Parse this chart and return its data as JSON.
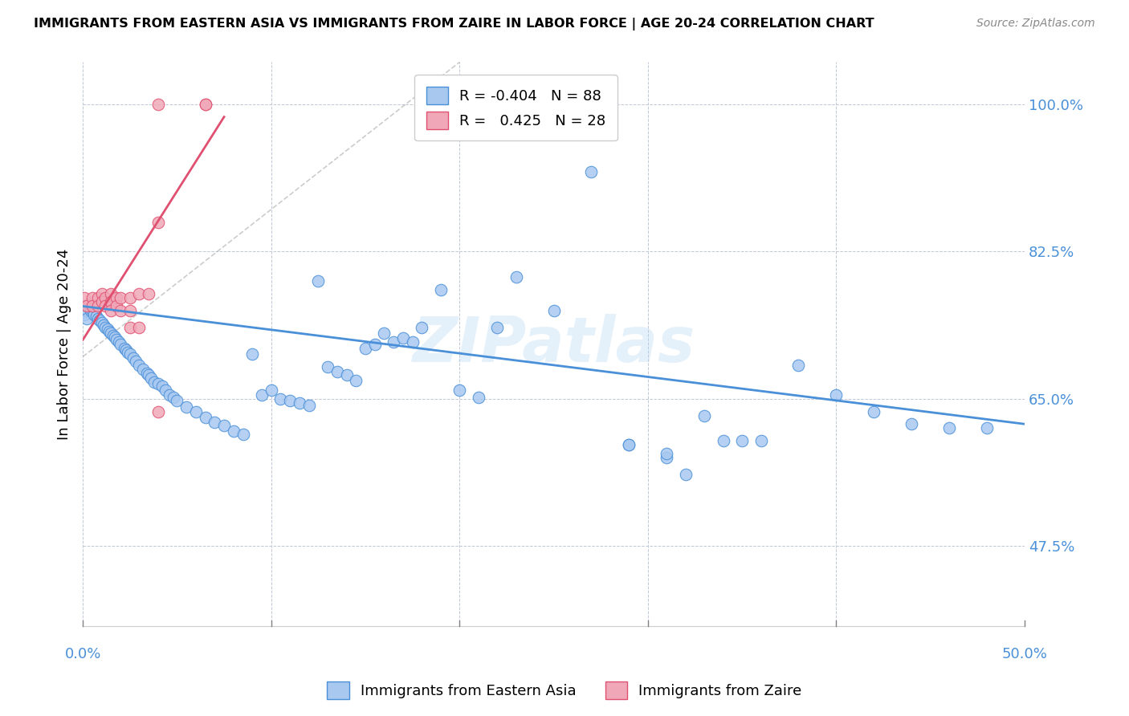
{
  "title": "IMMIGRANTS FROM EASTERN ASIA VS IMMIGRANTS FROM ZAIRE IN LABOR FORCE | AGE 20-24 CORRELATION CHART",
  "source": "Source: ZipAtlas.com",
  "ylabel": "In Labor Force | Age 20-24",
  "xlim": [
    0.0,
    0.5
  ],
  "ylim": [
    0.38,
    1.05
  ],
  "blue_color": "#a8c8f0",
  "pink_color": "#f0a8b8",
  "blue_line_color": "#4a90d9",
  "pink_line_color": "#e05070",
  "legend_blue_R": "-0.404",
  "legend_blue_N": "88",
  "legend_pink_R": " 0.425",
  "legend_pink_N": "28",
  "watermark": "ZIPatlas",
  "axis_color": "#4a90d9",
  "grid_color": "#c0c8d8",
  "blue_scatter_x": [
    0.001,
    0.001,
    0.002,
    0.002,
    0.003,
    0.004,
    0.005,
    0.006,
    0.007,
    0.008,
    0.009,
    0.01,
    0.011,
    0.012,
    0.013,
    0.014,
    0.015,
    0.016,
    0.017,
    0.018,
    0.019,
    0.02,
    0.022,
    0.023,
    0.024,
    0.025,
    0.027,
    0.028,
    0.03,
    0.032,
    0.034,
    0.035,
    0.036,
    0.038,
    0.04,
    0.042,
    0.044,
    0.046,
    0.048,
    0.05,
    0.055,
    0.06,
    0.065,
    0.07,
    0.075,
    0.08,
    0.085,
    0.09,
    0.095,
    0.1,
    0.105,
    0.11,
    0.115,
    0.12,
    0.125,
    0.13,
    0.135,
    0.14,
    0.145,
    0.15,
    0.155,
    0.16,
    0.165,
    0.17,
    0.175,
    0.18,
    0.19,
    0.2,
    0.21,
    0.22,
    0.23,
    0.25,
    0.27,
    0.29,
    0.31,
    0.32,
    0.33,
    0.35,
    0.38,
    0.4,
    0.42,
    0.44,
    0.46,
    0.48,
    0.29,
    0.31,
    0.34,
    0.36
  ],
  "blue_scatter_y": [
    0.76,
    0.75,
    0.755,
    0.745,
    0.76,
    0.755,
    0.755,
    0.75,
    0.748,
    0.745,
    0.743,
    0.74,
    0.738,
    0.735,
    0.733,
    0.73,
    0.728,
    0.725,
    0.723,
    0.72,
    0.718,
    0.715,
    0.71,
    0.708,
    0.705,
    0.703,
    0.698,
    0.695,
    0.69,
    0.685,
    0.68,
    0.678,
    0.675,
    0.67,
    0.668,
    0.665,
    0.66,
    0.655,
    0.652,
    0.648,
    0.64,
    0.635,
    0.628,
    0.622,
    0.618,
    0.612,
    0.608,
    0.703,
    0.655,
    0.66,
    0.65,
    0.648,
    0.645,
    0.642,
    0.79,
    0.688,
    0.682,
    0.678,
    0.672,
    0.71,
    0.715,
    0.728,
    0.718,
    0.722,
    0.718,
    0.735,
    0.78,
    0.66,
    0.652,
    0.735,
    0.795,
    0.755,
    0.92,
    0.595,
    0.58,
    0.56,
    0.63,
    0.6,
    0.69,
    0.655,
    0.635,
    0.62,
    0.615,
    0.615,
    0.595,
    0.585,
    0.6,
    0.6
  ],
  "pink_scatter_x": [
    0.001,
    0.002,
    0.005,
    0.005,
    0.008,
    0.008,
    0.01,
    0.01,
    0.012,
    0.012,
    0.015,
    0.015,
    0.015,
    0.018,
    0.018,
    0.02,
    0.02,
    0.025,
    0.025,
    0.025,
    0.03,
    0.03,
    0.035,
    0.04,
    0.04,
    0.04,
    0.065,
    0.065
  ],
  "pink_scatter_y": [
    0.77,
    0.76,
    0.77,
    0.76,
    0.77,
    0.76,
    0.775,
    0.765,
    0.77,
    0.76,
    0.775,
    0.765,
    0.755,
    0.77,
    0.76,
    0.77,
    0.755,
    0.77,
    0.755,
    0.735,
    0.775,
    0.735,
    0.775,
    1.0,
    0.86,
    0.635,
    1.0,
    1.0
  ],
  "blue_trend_x": [
    0.0,
    0.5
  ],
  "blue_trend_y": [
    0.76,
    0.62
  ],
  "pink_trend_x": [
    0.0,
    0.075
  ],
  "pink_trend_y": [
    0.72,
    0.985
  ]
}
